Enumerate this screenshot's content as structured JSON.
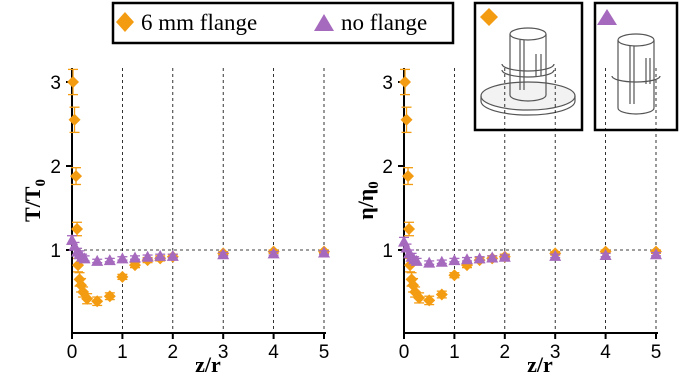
{
  "legend": {
    "entries": [
      {
        "label": "6 mm flange",
        "marker": "diamond",
        "color": "#f39c12"
      },
      {
        "label": "no flange",
        "marker": "triangle",
        "color": "#a569bd"
      }
    ]
  },
  "insets": [
    {
      "marker": "diamond",
      "color": "#f39c12",
      "depicts": "cylinder-with-flange"
    },
    {
      "marker": "triangle",
      "color": "#a569bd",
      "depicts": "cylinder-without-flange"
    }
  ],
  "chart_data": [
    {
      "type": "scatter",
      "xlabel": "z/r",
      "ylabel_main": "T/T",
      "ylabel_sub": "0",
      "xlim": [
        0,
        5
      ],
      "ylim": [
        0.1,
        3.2
      ],
      "xticks": [
        "0",
        "1",
        "2",
        "3",
        "4",
        "5"
      ],
      "yticks": [
        "1",
        "2",
        "3"
      ],
      "xtick_values": [
        0,
        1,
        2,
        3,
        4,
        5
      ],
      "ytick_values": [
        1,
        2,
        3
      ],
      "grid": "vertical dashed lines at integer z/r, horizontal dashed reference at 1",
      "reference_line": 1,
      "series": [
        {
          "marker": "diamond",
          "color": "#f39c12",
          "x": [
            0.02,
            0.05,
            0.08,
            0.1,
            0.12,
            0.15,
            0.18,
            0.22,
            0.3,
            0.5,
            0.75,
            1.0,
            1.25,
            1.5,
            1.75,
            2.0,
            3.0,
            4.0,
            5.0
          ],
          "y": [
            3.0,
            2.55,
            1.88,
            1.25,
            0.82,
            0.65,
            0.58,
            0.5,
            0.42,
            0.39,
            0.45,
            0.68,
            0.82,
            0.88,
            0.9,
            0.92,
            0.96,
            0.98,
            0.98
          ],
          "yerr": [
            0.15,
            0.15,
            0.1,
            0.08,
            0.08,
            0.08,
            0.08,
            0.06,
            0.06,
            0.05,
            0.04,
            0.03,
            0.03,
            0.03,
            0.03,
            0.03,
            0.02,
            0.02,
            0.02
          ]
        },
        {
          "marker": "triangle",
          "color": "#a569bd",
          "x": [
            0.0,
            0.05,
            0.1,
            0.15,
            0.2,
            0.25,
            0.5,
            0.75,
            1.0,
            1.25,
            1.5,
            1.75,
            2.0,
            3.0,
            4.0,
            5.0
          ],
          "y": [
            1.12,
            1.05,
            0.98,
            0.95,
            0.92,
            0.9,
            0.87,
            0.88,
            0.9,
            0.91,
            0.92,
            0.93,
            0.93,
            0.95,
            0.96,
            0.97
          ],
          "yerr": [
            0.05,
            0.04,
            0.04,
            0.04,
            0.03,
            0.03,
            0.02,
            0.02,
            0.02,
            0.02,
            0.02,
            0.02,
            0.02,
            0.02,
            0.02,
            0.02
          ]
        }
      ]
    },
    {
      "type": "scatter",
      "xlabel": "z/r",
      "ylabel_main": "η/η",
      "ylabel_sub": "0",
      "xlim": [
        0,
        5
      ],
      "ylim": [
        0.1,
        3.2
      ],
      "xticks": [
        "0",
        "1",
        "2",
        "3",
        "4",
        "5"
      ],
      "yticks": [
        "1",
        "2",
        "3"
      ],
      "xtick_values": [
        0,
        1,
        2,
        3,
        4,
        5
      ],
      "ytick_values": [
        1,
        2,
        3
      ],
      "grid": "vertical dashed lines at integer z/r, horizontal dashed reference at 1",
      "reference_line": 1,
      "series": [
        {
          "marker": "diamond",
          "color": "#f39c12",
          "x": [
            0.02,
            0.05,
            0.08,
            0.1,
            0.12,
            0.15,
            0.18,
            0.22,
            0.3,
            0.5,
            0.75,
            1.0,
            1.25,
            1.5,
            1.75,
            2.0,
            3.0,
            4.0,
            5.0
          ],
          "y": [
            3.0,
            2.55,
            1.88,
            1.25,
            0.82,
            0.65,
            0.58,
            0.5,
            0.43,
            0.4,
            0.47,
            0.7,
            0.82,
            0.88,
            0.9,
            0.92,
            0.96,
            0.98,
            0.98
          ],
          "yerr": [
            0.15,
            0.15,
            0.1,
            0.08,
            0.08,
            0.08,
            0.08,
            0.06,
            0.06,
            0.05,
            0.04,
            0.03,
            0.03,
            0.03,
            0.03,
            0.03,
            0.02,
            0.02,
            0.02
          ]
        },
        {
          "marker": "triangle",
          "color": "#a569bd",
          "x": [
            0.0,
            0.05,
            0.1,
            0.15,
            0.2,
            0.25,
            0.5,
            0.75,
            1.0,
            1.25,
            1.5,
            1.75,
            2.0,
            3.0,
            4.0,
            5.0
          ],
          "y": [
            1.1,
            1.03,
            0.96,
            0.92,
            0.89,
            0.87,
            0.85,
            0.86,
            0.88,
            0.89,
            0.9,
            0.91,
            0.92,
            0.93,
            0.94,
            0.95
          ],
          "yerr": [
            0.05,
            0.04,
            0.04,
            0.04,
            0.03,
            0.03,
            0.02,
            0.02,
            0.02,
            0.02,
            0.02,
            0.02,
            0.02,
            0.02,
            0.02,
            0.02
          ]
        }
      ]
    }
  ]
}
